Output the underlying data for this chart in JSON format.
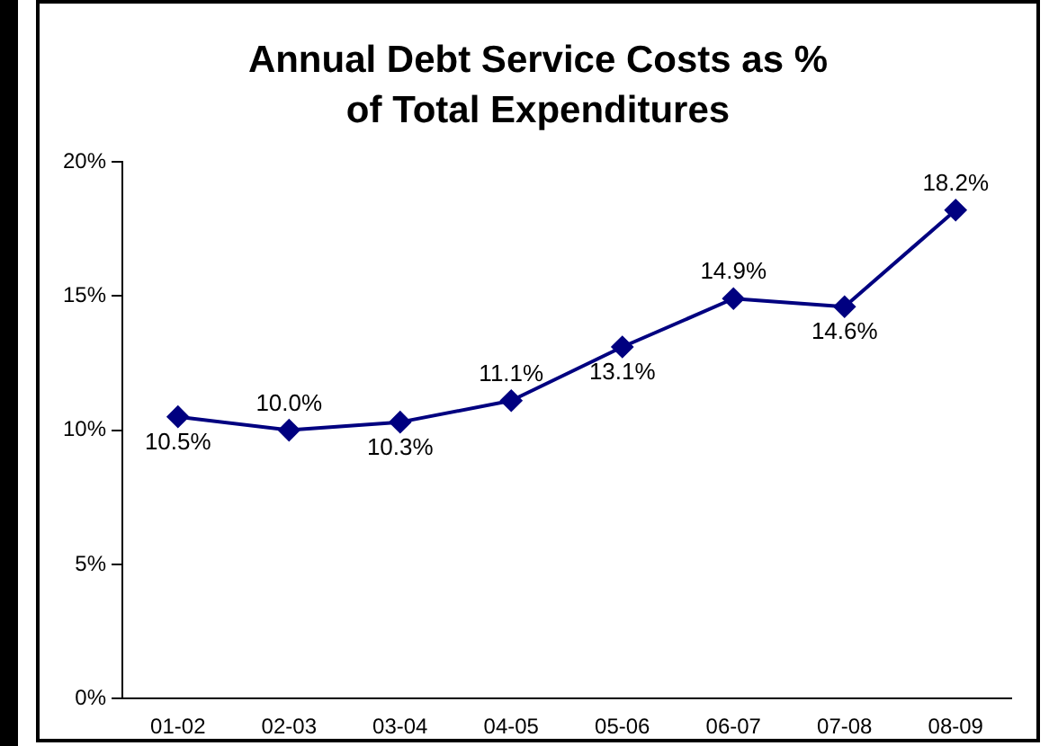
{
  "chart_data": {
    "type": "line",
    "title": "Annual Debt Service Costs as % of Total Expenditures",
    "categories": [
      "01-02",
      "02-03",
      "03-04",
      "04-05",
      "05-06",
      "06-07",
      "07-08",
      "08-09"
    ],
    "series": [
      {
        "color": "#000080",
        "values": [
          10.5,
          10.0,
          10.3,
          11.1,
          13.1,
          14.9,
          14.6,
          18.2
        ],
        "value_labels": [
          "10.5%",
          "10.0%",
          "10.3%",
          "11.1%",
          "13.1%",
          "14.9%",
          "14.6%",
          "18.2%"
        ]
      }
    ],
    "ylim": [
      0,
      20
    ],
    "yticks": [
      {
        "value": 0,
        "label": "0%"
      },
      {
        "value": 5,
        "label": "5%"
      },
      {
        "value": 10,
        "label": "10%"
      },
      {
        "value": 15,
        "label": "15%"
      },
      {
        "value": 20,
        "label": "20%"
      }
    ],
    "grid": false,
    "legend": false,
    "marker": "diamond",
    "line_style": "solid"
  }
}
